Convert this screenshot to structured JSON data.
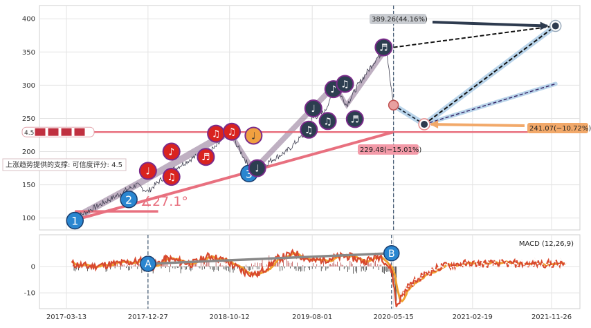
{
  "colors": {
    "grid": "#e3e3e3",
    "price_line": "#3d3d4f",
    "trend_fill": "#8a7090",
    "support_line": "#e8707f",
    "target_up": "#2e3b4f",
    "proj_band": "#b9d4ea",
    "label_up_bg": "#c9ccd1",
    "label_down_bg": "#f39aa8",
    "label_side_bg": "#f2a96a",
    "macd_line": "#d8482e",
    "macd_signal": "#f0a030",
    "note_red": "#d9231f",
    "note_dark": "#2c3e50",
    "wave_blue": "#2a86d0"
  },
  "chart_data": [
    {
      "type": "line",
      "title": "",
      "ylim": [
        82,
        420
      ],
      "y_ticks": [
        100,
        150,
        200,
        250,
        300,
        350,
        400
      ],
      "x_ticks": [
        "2017-03-13",
        "2017-12-27",
        "2018-10-12",
        "2019-08-01",
        "2020-05-15",
        "2021-02-19",
        "2021-11-26"
      ],
      "grid": true,
      "price_anchors": [
        [
          "2017-04-12",
          100
        ],
        [
          "2017-08-01",
          125
        ],
        [
          "2017-11-15",
          150
        ],
        [
          "2017-12-27",
          140
        ],
        [
          "2018-03-15",
          170
        ],
        [
          "2018-06-01",
          190
        ],
        [
          "2018-08-20",
          205
        ],
        [
          "2018-10-12",
          230
        ],
        [
          "2018-11-20",
          200
        ],
        [
          "2019-01-05",
          165
        ],
        [
          "2019-03-01",
          185
        ],
        [
          "2019-05-01",
          200
        ],
        [
          "2019-07-01",
          225
        ],
        [
          "2019-08-01",
          250
        ],
        [
          "2019-09-15",
          260
        ],
        [
          "2019-10-20",
          300
        ],
        [
          "2019-12-01",
          270
        ],
        [
          "2020-01-10",
          300
        ],
        [
          "2020-03-15",
          340
        ],
        [
          "2020-04-20",
          355
        ],
        [
          "2020-05-05",
          300
        ],
        [
          "2020-05-15",
          270
        ]
      ],
      "support_level": {
        "value": 229.48,
        "label": "4.5"
      },
      "support_note": "上涨趋势提供的支撑: 可信度评分: 4.5",
      "trend_angle_label": "∡27.1°",
      "price_labels": [
        {
          "text": "389.26(44.16%)",
          "date": "2020-05-15",
          "value": 400
        },
        {
          "text": "229.48(−15.01%)",
          "date": "2020-05-15",
          "value": 213
        },
        {
          "text": "241.07(−10.72%)",
          "date": "2022-01-15",
          "value": 233
        }
      ],
      "targets": [
        {
          "name": "up",
          "date": "2021-12-10",
          "value": 389.26
        },
        {
          "name": "mid",
          "date": "2020-09-01",
          "value": 241.07
        }
      ],
      "waves": [
        {
          "label": "1",
          "date": "2017-04-12",
          "value": 96
        },
        {
          "label": "2",
          "date": "2017-10-20",
          "value": 128
        },
        {
          "label": "3",
          "date": "2018-12-20",
          "value": 167
        }
      ],
      "notes": [
        {
          "glyph": "♩",
          "date": "2017-12-27",
          "value": 171,
          "color": "note_red"
        },
        {
          "glyph": "♪",
          "date": "2018-03-20",
          "value": 200,
          "color": "note_red"
        },
        {
          "glyph": "♫",
          "date": "2018-03-20",
          "value": 162,
          "color": "note_red"
        },
        {
          "glyph": "♬",
          "date": "2018-07-20",
          "value": 192,
          "color": "note_red"
        },
        {
          "glyph": "♫",
          "date": "2018-08-25",
          "value": 227,
          "color": "note_red"
        },
        {
          "glyph": "♫",
          "date": "2018-10-20",
          "value": 230,
          "color": "note_red"
        },
        {
          "glyph": "♩",
          "date": "2019-01-05",
          "value": 224,
          "color": "note_orange"
        },
        {
          "glyph": "♩",
          "date": "2019-01-18",
          "value": 175,
          "color": "note_dark"
        },
        {
          "glyph": "♫",
          "date": "2019-07-20",
          "value": 233,
          "color": "note_dark"
        },
        {
          "glyph": "♩",
          "date": "2019-08-05",
          "value": 265,
          "color": "note_dark"
        },
        {
          "glyph": "♫",
          "date": "2019-09-25",
          "value": 246,
          "color": "note_dark"
        },
        {
          "glyph": "♪",
          "date": "2019-10-15",
          "value": 294,
          "color": "note_dark"
        },
        {
          "glyph": "♫",
          "date": "2019-11-25",
          "value": 302,
          "color": "note_dark"
        },
        {
          "glyph": "♬",
          "date": "2019-12-30",
          "value": 249,
          "color": "note_dark"
        },
        {
          "glyph": "♬",
          "date": "2020-04-10",
          "value": 357,
          "color": "note_dark"
        }
      ]
    },
    {
      "type": "line",
      "title": "MACD (12,26,9)",
      "ylim": [
        -16,
        12
      ],
      "y_ticks": [
        -10,
        0
      ],
      "markers": [
        {
          "label": "A",
          "date": "2017-12-27",
          "value": 1
        },
        {
          "label": "B",
          "date": "2020-05-08",
          "value": 5
        }
      ],
      "macd_anchors": [
        [
          "2017-04-01",
          1
        ],
        [
          "2017-06-01",
          0
        ],
        [
          "2017-09-01",
          1
        ],
        [
          "2017-12-01",
          2
        ],
        [
          "2018-01-15",
          0
        ],
        [
          "2018-03-01",
          3
        ],
        [
          "2018-06-01",
          1
        ],
        [
          "2018-08-01",
          4
        ],
        [
          "2018-10-01",
          2
        ],
        [
          "2018-12-01",
          -2
        ],
        [
          "2019-01-20",
          -3
        ],
        [
          "2019-04-01",
          3
        ],
        [
          "2019-06-01",
          5
        ],
        [
          "2019-08-01",
          2
        ],
        [
          "2019-10-01",
          3
        ],
        [
          "2019-12-01",
          4
        ],
        [
          "2020-02-01",
          2
        ],
        [
          "2020-04-01",
          4
        ],
        [
          "2020-05-10",
          -2
        ],
        [
          "2020-05-25",
          -15
        ],
        [
          "2020-07-01",
          -8
        ],
        [
          "2020-09-01",
          -3
        ],
        [
          "2020-11-01",
          0
        ],
        [
          "2021-01-15",
          1
        ],
        [
          "2022-01-15",
          1
        ]
      ]
    }
  ]
}
